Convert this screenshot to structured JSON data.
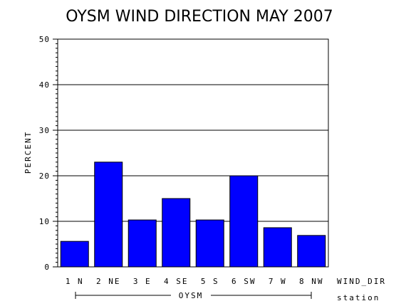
{
  "chart_data": {
    "type": "bar",
    "title": "OYSM WIND DIRECTION MAY 2007",
    "ylabel": "PERCENT",
    "xlabel": "WIND_DIR",
    "group_label": "OYSM",
    "group_axis_label": "station",
    "ylim": [
      0,
      50
    ],
    "yticks": [
      0,
      10,
      20,
      30,
      40,
      50
    ],
    "grid": true,
    "categories": [
      "1 N",
      "2 NE",
      "3 E",
      "4 SE",
      "5 S",
      "6 SW",
      "7 W",
      "8 NW"
    ],
    "values": [
      5.6,
      23.0,
      10.3,
      15.0,
      10.3,
      20.0,
      8.6,
      6.9
    ],
    "bar_color": "#0000ff"
  }
}
